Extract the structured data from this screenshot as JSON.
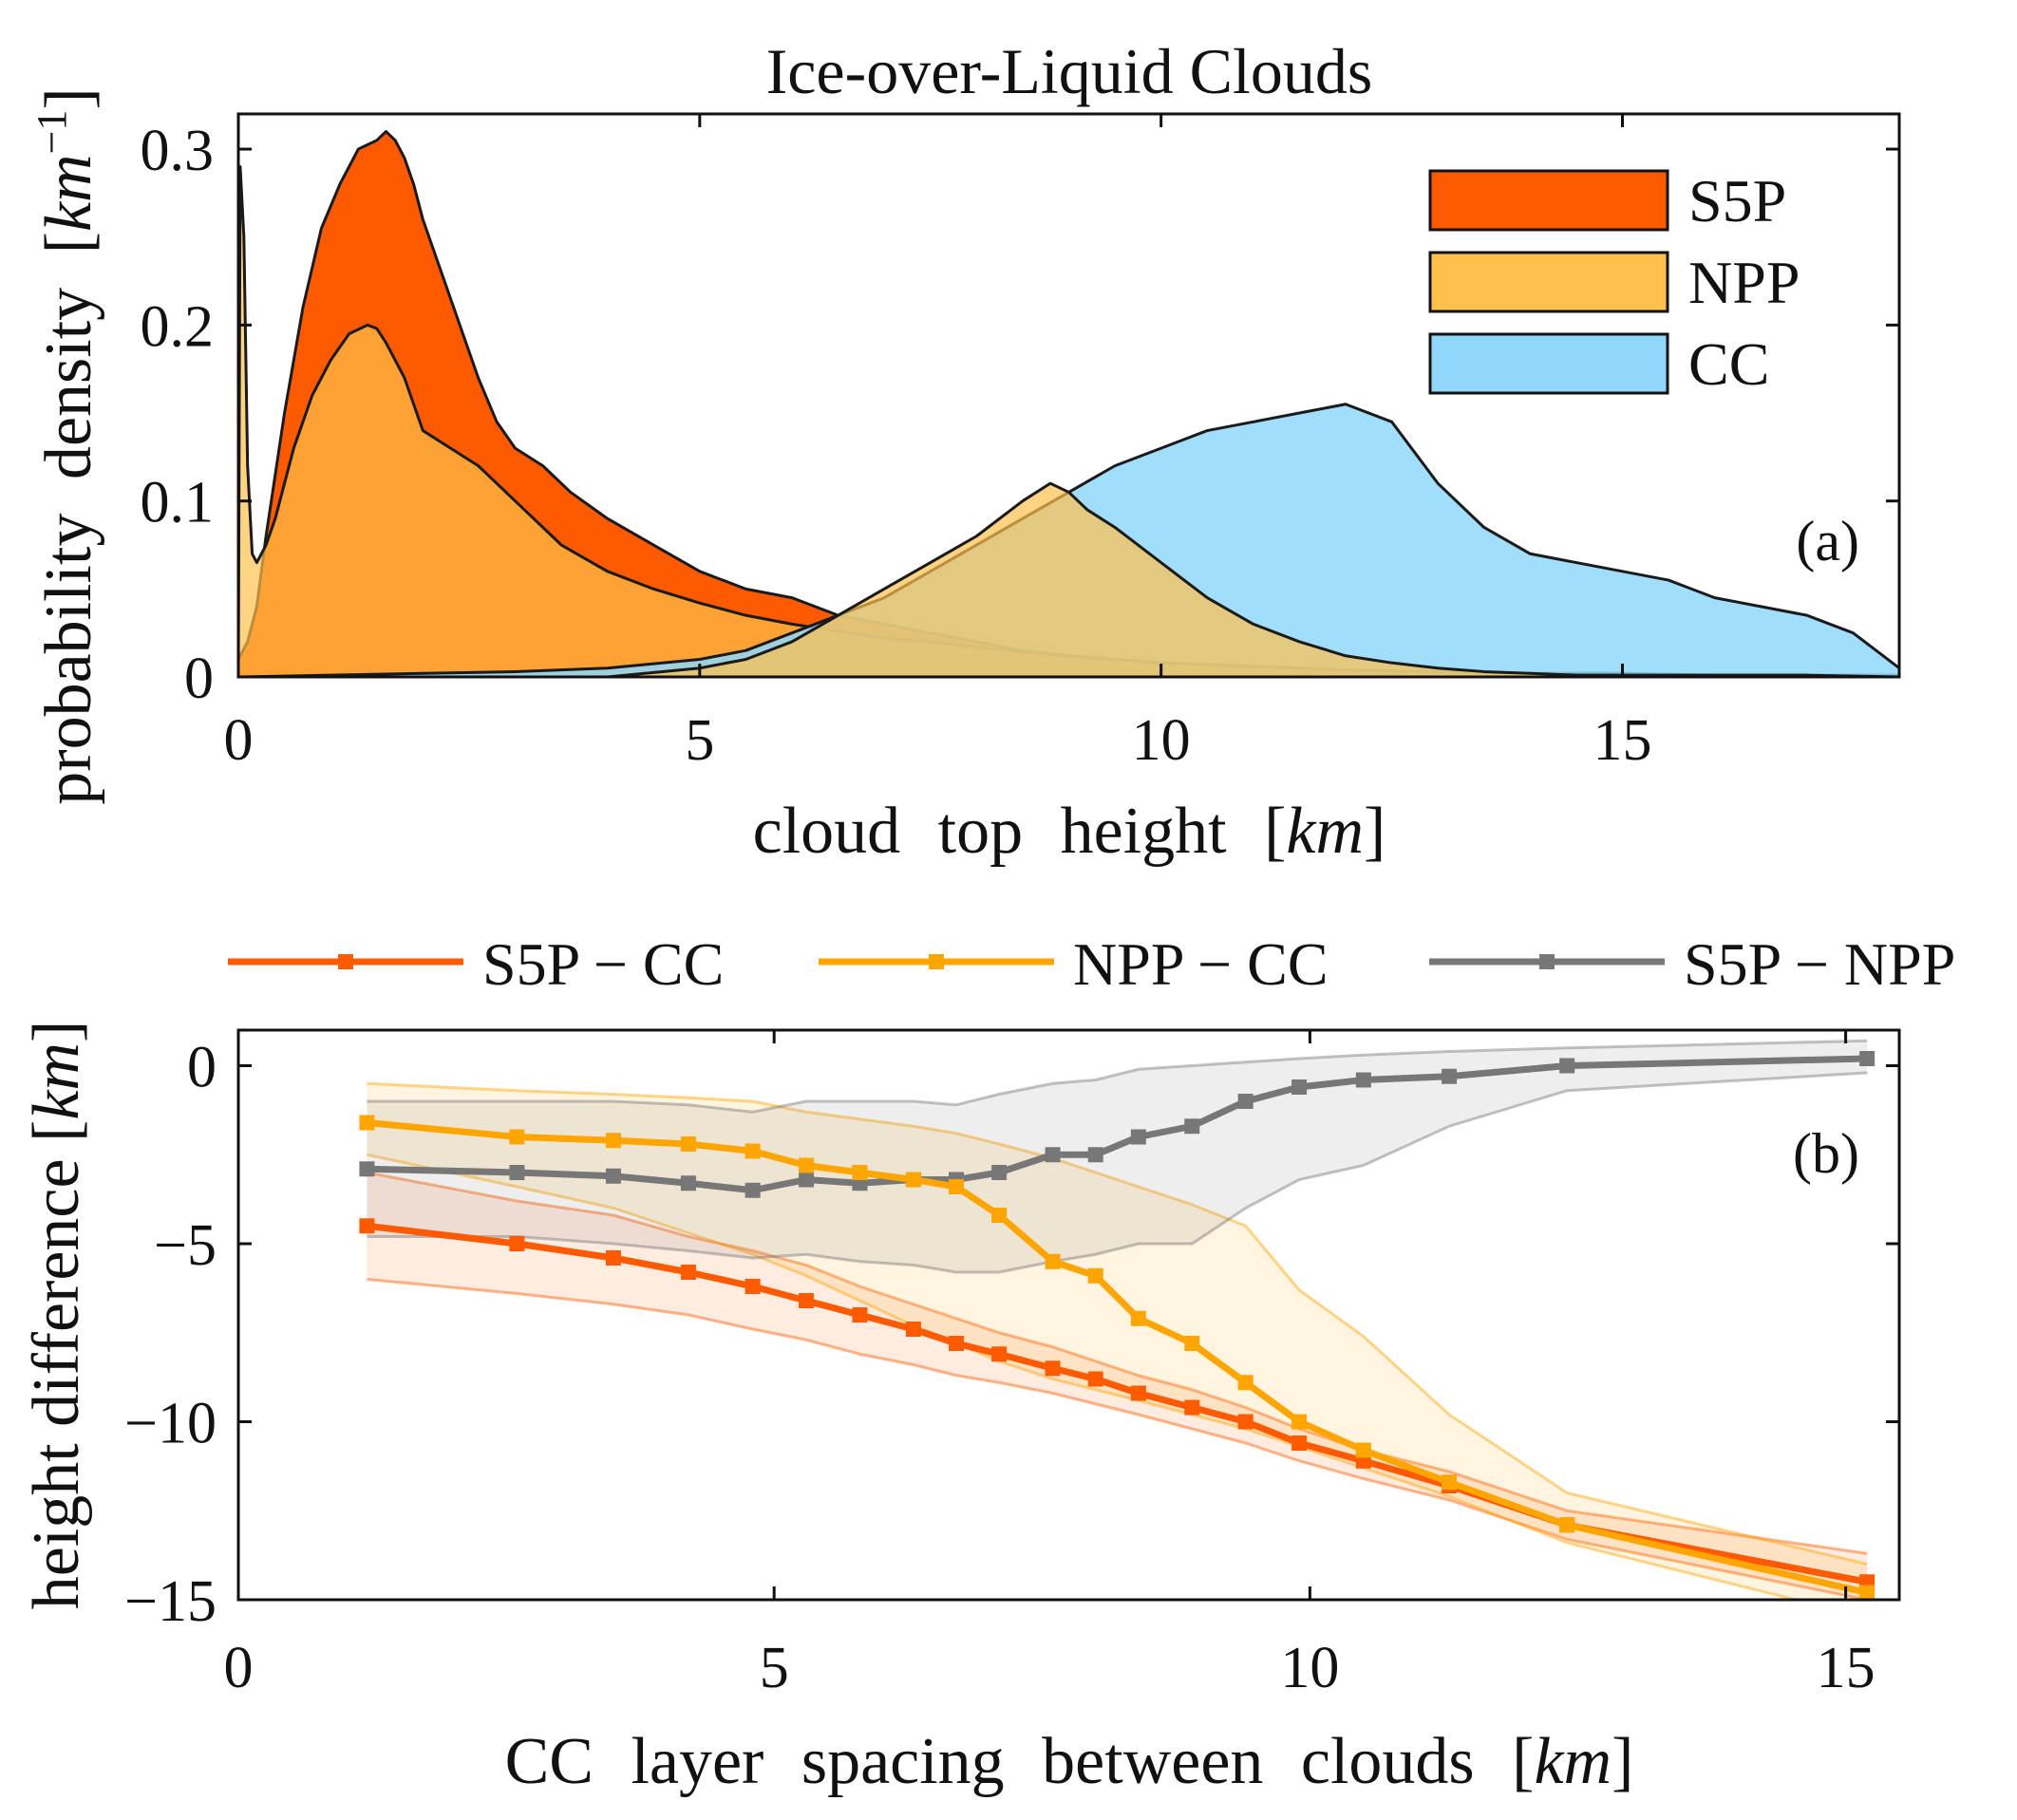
{
  "figure": {
    "title": "Ice-over-Liquid Clouds"
  },
  "chart_data": [
    {
      "type": "area",
      "panel_label": "(a)",
      "title": "Ice-over-Liquid Clouds",
      "xlabel": "cloud top height",
      "xlabel_unit": "km",
      "ylabel": "probability density",
      "ylabel_unit": "km",
      "ylabel_unit_exp": "−1",
      "xlim": [
        0,
        18
      ],
      "ylim": [
        0,
        0.32
      ],
      "xticks": [
        0,
        5,
        10,
        15
      ],
      "xtick_labels": [
        "0",
        "5",
        "10",
        "15"
      ],
      "yticks": [
        0,
        0.1,
        0.2,
        0.3
      ],
      "ytick_labels": [
        "0",
        "0.1",
        "0.2",
        "0.3"
      ],
      "grid": false,
      "legend_position": "top-right",
      "colors": {
        "S5P": "#ff5a00",
        "NPP": "#ffc04c",
        "CC": "#8fd8fb",
        "outline": "#1a1a1a"
      },
      "series": [
        {
          "name": "S5P",
          "fill_opacity": 1.0,
          "x": [
            0,
            0.1,
            0.2,
            0.3,
            0.5,
            0.7,
            0.9,
            1.1,
            1.3,
            1.5,
            1.6,
            1.7,
            1.8,
            1.9,
            2.0,
            2.2,
            2.4,
            2.6,
            2.8,
            3.0,
            3.3,
            3.6,
            4.0,
            4.5,
            5.0,
            5.5,
            6.0,
            6.5,
            7.0,
            7.5,
            8.0,
            8.5,
            9.0,
            10,
            11,
            12,
            13,
            14,
            15,
            16,
            17,
            18
          ],
          "values": [
            0.01,
            0.02,
            0.04,
            0.08,
            0.15,
            0.21,
            0.255,
            0.28,
            0.3,
            0.305,
            0.31,
            0.305,
            0.295,
            0.28,
            0.26,
            0.23,
            0.2,
            0.17,
            0.145,
            0.13,
            0.12,
            0.105,
            0.09,
            0.075,
            0.06,
            0.05,
            0.045,
            0.035,
            0.03,
            0.025,
            0.02,
            0.015,
            0.012,
            0.008,
            0.006,
            0.004,
            0.003,
            0.002,
            0.002,
            0.001,
            0.001,
            0.001
          ]
        },
        {
          "name": "NPP",
          "fill_opacity": 0.7,
          "x": [
            0,
            0.02,
            0.06,
            0.1,
            0.15,
            0.2,
            0.3,
            0.4,
            0.5,
            0.6,
            0.8,
            1.0,
            1.2,
            1.4,
            1.5,
            1.6,
            1.8,
            2.0,
            2.3,
            2.6,
            3.0,
            3.5,
            4.0,
            4.5,
            5.0,
            5.5,
            6.0,
            6.5,
            7.0,
            7.5,
            8.0,
            8.5,
            9.0,
            9.5,
            10,
            11,
            12,
            13,
            14,
            15,
            16,
            17,
            18
          ],
          "values": [
            0.005,
            0.29,
            0.25,
            0.12,
            0.07,
            0.065,
            0.075,
            0.09,
            0.11,
            0.13,
            0.16,
            0.18,
            0.195,
            0.2,
            0.198,
            0.19,
            0.17,
            0.14,
            0.13,
            0.12,
            0.1,
            0.075,
            0.06,
            0.05,
            0.042,
            0.035,
            0.03,
            0.026,
            0.022,
            0.02,
            0.017,
            0.014,
            0.012,
            0.01,
            0.008,
            0.006,
            0.004,
            0.003,
            0.002,
            0.002,
            0.001,
            0.001,
            0.001
          ]
        },
        {
          "name": "CC",
          "fill_opacity": 0.85,
          "x": [
            0,
            1,
            2,
            3,
            4,
            5,
            5.5,
            6,
            6.5,
            7,
            7.5,
            8,
            8.5,
            9,
            9.5,
            10,
            10.5,
            11,
            11.5,
            12,
            12.5,
            13,
            13.5,
            14,
            14.5,
            15,
            15.5,
            16,
            16.5,
            17,
            17.5,
            18
          ],
          "values": [
            0,
            0.001,
            0.002,
            0.003,
            0.005,
            0.01,
            0.015,
            0.025,
            0.035,
            0.045,
            0.06,
            0.075,
            0.09,
            0.105,
            0.12,
            0.13,
            0.14,
            0.145,
            0.15,
            0.155,
            0.145,
            0.11,
            0.085,
            0.07,
            0.065,
            0.06,
            0.055,
            0.045,
            0.04,
            0.035,
            0.025,
            0.005
          ]
        },
        {
          "name": "NPP (second mode)",
          "legend": false,
          "fill_opacity": 0.7,
          "x": [
            4,
            5,
            5.5,
            6,
            6.5,
            7,
            7.5,
            8,
            8.5,
            8.8,
            9.0,
            9.2,
            9.5,
            10,
            10.5,
            11,
            11.5,
            12,
            12.5,
            13,
            13.5,
            14,
            14.5,
            15,
            16,
            17,
            18
          ],
          "values": [
            0,
            0.005,
            0.01,
            0.02,
            0.035,
            0.05,
            0.065,
            0.08,
            0.1,
            0.11,
            0.105,
            0.095,
            0.085,
            0.065,
            0.045,
            0.03,
            0.02,
            0.012,
            0.008,
            0.005,
            0.003,
            0.002,
            0.001,
            0.001,
            0.001,
            0.001,
            0
          ]
        }
      ]
    },
    {
      "type": "line",
      "panel_label": "(b)",
      "xlabel": "CC layer spacing between clouds",
      "xlabel_unit": "km",
      "ylabel": "height difference",
      "ylabel_unit": "km",
      "xlim": [
        0,
        15.5
      ],
      "ylim": [
        -15,
        1
      ],
      "xticks": [
        0,
        5,
        10,
        15
      ],
      "xtick_labels": [
        "0",
        "5",
        "10",
        "15"
      ],
      "yticks": [
        0,
        -5,
        -10,
        -15
      ],
      "ytick_labels": [
        "0",
        "−5",
        "−10",
        "−15"
      ],
      "grid": false,
      "legend_position": "top (outside)",
      "colors": {
        "S5P − CC": "#ff5a00",
        "NPP − CC": "#ffa500",
        "S5P − NPP": "#777777"
      },
      "series": [
        {
          "name": "S5P − CC",
          "x": [
            1.2,
            2.6,
            3.5,
            4.2,
            4.8,
            5.3,
            5.8,
            6.3,
            6.7,
            7.1,
            7.6,
            8.0,
            8.4,
            8.9,
            9.4,
            9.9,
            10.5,
            11.3,
            12.4,
            15.2
          ],
          "values": [
            -4.5,
            -5.0,
            -5.4,
            -5.8,
            -6.2,
            -6.6,
            -7.0,
            -7.4,
            -7.8,
            -8.1,
            -8.5,
            -8.8,
            -9.2,
            -9.6,
            -10.0,
            -10.6,
            -11.1,
            -11.8,
            -12.9,
            -14.5
          ],
          "band_upper": [
            -3.0,
            -3.8,
            -4.2,
            -4.8,
            -5.2,
            -5.6,
            -6.2,
            -6.7,
            -7.1,
            -7.5,
            -7.9,
            -8.3,
            -8.7,
            -9.1,
            -9.6,
            -10.2,
            -10.8,
            -11.4,
            -12.5,
            -13.7
          ],
          "band_lower": [
            -6.0,
            -6.4,
            -6.7,
            -7.0,
            -7.4,
            -7.7,
            -8.1,
            -8.4,
            -8.7,
            -8.9,
            -9.2,
            -9.5,
            -9.8,
            -10.2,
            -10.6,
            -11.1,
            -11.6,
            -12.2,
            -13.3,
            -15.0
          ]
        },
        {
          "name": "NPP − CC",
          "x": [
            1.2,
            2.6,
            3.5,
            4.2,
            4.8,
            5.3,
            5.8,
            6.3,
            6.7,
            7.1,
            7.6,
            8.0,
            8.4,
            8.9,
            9.4,
            9.9,
            10.5,
            11.3,
            12.4,
            15.2
          ],
          "values": [
            -1.6,
            -2.0,
            -2.1,
            -2.2,
            -2.4,
            -2.8,
            -3.0,
            -3.2,
            -3.4,
            -4.2,
            -5.5,
            -5.9,
            -7.1,
            -7.8,
            -8.9,
            -10.0,
            -10.8,
            -11.7,
            -12.9,
            -14.8
          ],
          "band_upper": [
            -0.5,
            -0.7,
            -0.8,
            -0.9,
            -1.0,
            -1.3,
            -1.5,
            -1.7,
            -1.9,
            -2.2,
            -2.6,
            -3.0,
            -3.4,
            -3.9,
            -4.5,
            -6.3,
            -7.6,
            -9.8,
            -12.0,
            -14.0
          ],
          "band_lower": [
            -2.5,
            -3.4,
            -4.0,
            -4.7,
            -5.3,
            -5.9,
            -6.6,
            -7.3,
            -7.8,
            -8.3,
            -8.8,
            -9.1,
            -9.4,
            -9.8,
            -10.2,
            -10.7,
            -11.3,
            -12.1,
            -13.4,
            -15.5
          ]
        },
        {
          "name": "S5P − NPP",
          "x": [
            1.2,
            2.6,
            3.5,
            4.2,
            4.8,
            5.3,
            5.8,
            6.3,
            6.7,
            7.1,
            7.6,
            8.0,
            8.4,
            8.9,
            9.4,
            9.9,
            10.5,
            11.3,
            12.4,
            15.2
          ],
          "values": [
            -2.9,
            -3.0,
            -3.1,
            -3.3,
            -3.5,
            -3.2,
            -3.3,
            -3.2,
            -3.2,
            -3.0,
            -2.5,
            -2.5,
            -2.0,
            -1.7,
            -1.0,
            -0.6,
            -0.4,
            -0.3,
            0.0,
            0.2
          ],
          "band_upper": [
            -1.0,
            -1.0,
            -1.0,
            -1.1,
            -1.3,
            -1.0,
            -1.0,
            -1.0,
            -1.1,
            -0.8,
            -0.5,
            -0.4,
            -0.1,
            0.0,
            0.1,
            0.2,
            0.3,
            0.4,
            0.5,
            0.7
          ],
          "band_lower": [
            -4.8,
            -4.8,
            -5.0,
            -5.2,
            -5.4,
            -5.3,
            -5.5,
            -5.6,
            -5.8,
            -5.8,
            -5.5,
            -5.3,
            -5.0,
            -5.0,
            -4.0,
            -3.2,
            -2.8,
            -1.7,
            -0.7,
            -0.2
          ]
        }
      ]
    }
  ]
}
